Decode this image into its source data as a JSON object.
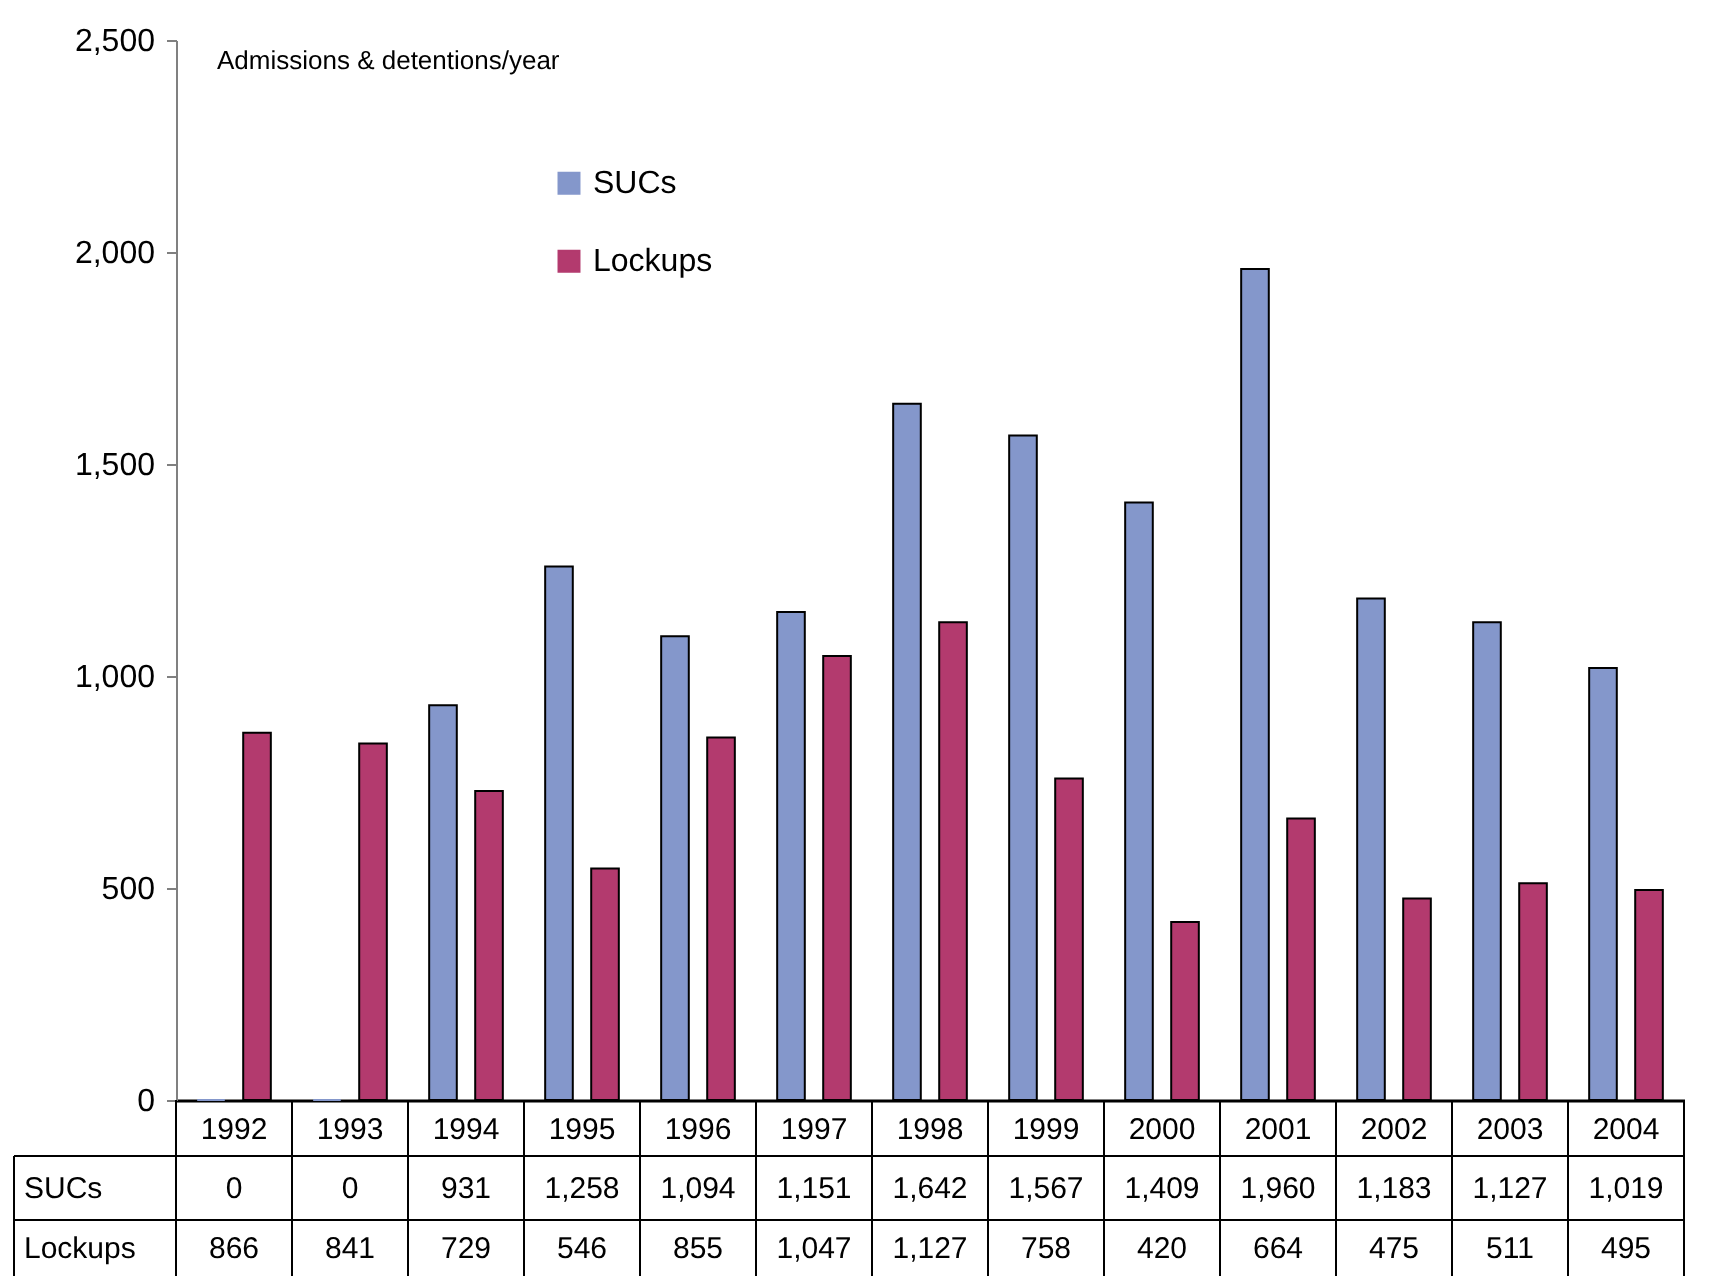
{
  "chart_data": {
    "type": "bar",
    "ylabel": "Admissions & detentions/year",
    "categories": [
      "1992",
      "1993",
      "1994",
      "1995",
      "1996",
      "1997",
      "1998",
      "1999",
      "2000",
      "2001",
      "2002",
      "2003",
      "2004"
    ],
    "series": [
      {
        "name": "SUCs",
        "color": "#8497cb",
        "values": [
          0,
          0,
          931,
          1258,
          1094,
          1151,
          1642,
          1567,
          1409,
          1960,
          1183,
          1127,
          1019
        ],
        "value_labels": [
          "0",
          "0",
          "931",
          "1,258",
          "1,094",
          "1,151",
          "1,642",
          "1,567",
          "1,409",
          "1,960",
          "1,183",
          "1,127",
          "1,019"
        ]
      },
      {
        "name": "Lockups",
        "color": "#b33a6e",
        "values": [
          866,
          841,
          729,
          546,
          855,
          1047,
          1127,
          758,
          420,
          664,
          475,
          511,
          495
        ],
        "value_labels": [
          "866",
          "841",
          "729",
          "546",
          "855",
          "1,047",
          "1,127",
          "758",
          "420",
          "664",
          "475",
          "511",
          "495"
        ]
      }
    ],
    "ylim": [
      0,
      2500
    ],
    "yticks": [
      0,
      500,
      {
        "value": 1000,
        "label": "1,000"
      },
      {
        "value": 1500,
        "label": "1,500"
      },
      {
        "value": 2000,
        "label": "2,000"
      },
      {
        "value": 2500,
        "label": "2,500"
      }
    ],
    "grid": false,
    "legend": "top"
  }
}
